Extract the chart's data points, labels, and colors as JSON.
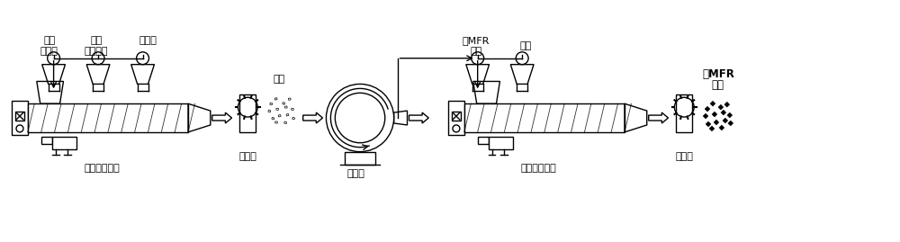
{
  "bg_color": "#ffffff",
  "line_color": "#000000",
  "fill_color": "#ffffff",
  "gray_fill": "#d0d0d0",
  "dark_fill": "#404040",
  "labels": {
    "hopper1_top": "均聚",
    "hopper1_top2": "聚丙烯",
    "hopper2_top": "有机",
    "hopper2_top2": "过氧化物",
    "hopper3_top": "抗氧剂",
    "extruder1_bottom": "双螺杆挤出机",
    "pelletizer1_bottom": "切粒机",
    "grinder_bottom": "磨粉机",
    "extruder2_bottom": "双螺杆挤出机",
    "pelletizer2_bottom": "切粒机",
    "pellet_label": "粒料",
    "hopper4_top": "高MFR",
    "hopper4_top2": "粉料",
    "hopper5_top": "炭黑",
    "product_label": "高MFR",
    "product_label2": "母粒"
  },
  "figsize": [
    10.0,
    2.69
  ],
  "dpi": 100
}
